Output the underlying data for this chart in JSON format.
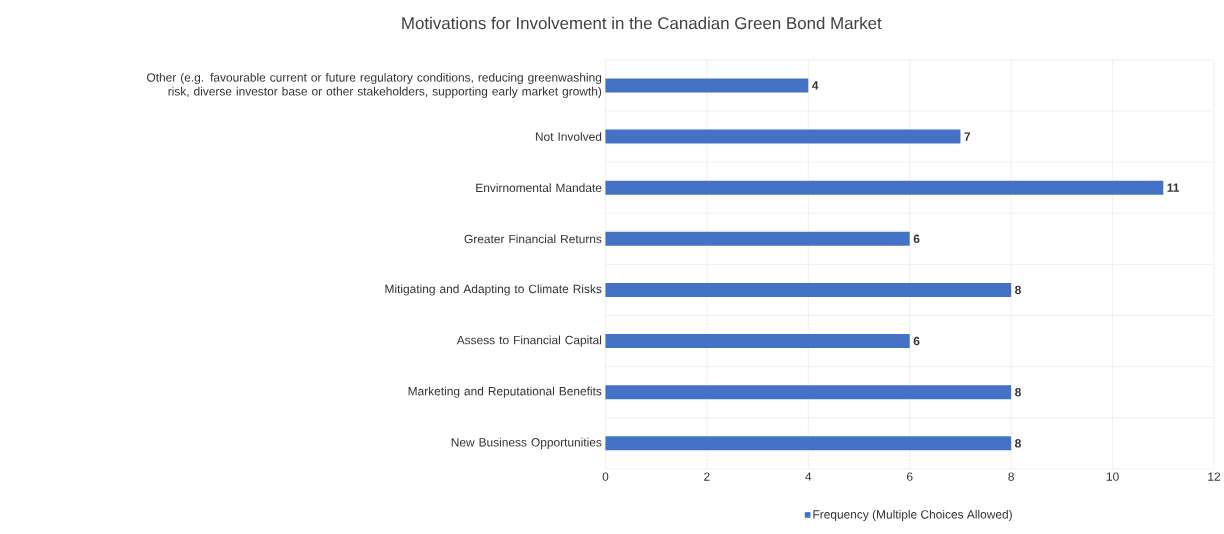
{
  "chart_data": {
    "type": "bar",
    "orientation": "horizontal",
    "title": "Motivations for Involvement in the Canadian Green Bond Market",
    "categories": [
      "Other (e.g. favourable current or future regulatory conditions, reducing greenwashing risk, diverse investor base or other stakeholders, supporting early market growth)",
      "Not Involved",
      "Envirnomental Mandate",
      "Greater Financial Returns",
      "Mitigating and Adapting to Climate Risks",
      "Assess to Financial Capital",
      "Marketing and Reputational Benefits",
      "New Business Opportunities"
    ],
    "series": [
      {
        "name": "Frequency (Multiple Choices Allowed)",
        "color": "#4472c4",
        "values": [
          4,
          7,
          11,
          6,
          8,
          6,
          8,
          8
        ]
      }
    ],
    "xlim": [
      0,
      12
    ],
    "xticks": [
      0,
      2,
      4,
      6,
      8,
      10,
      12
    ],
    "grid": true,
    "legend": "bottom",
    "data_labels": true
  }
}
